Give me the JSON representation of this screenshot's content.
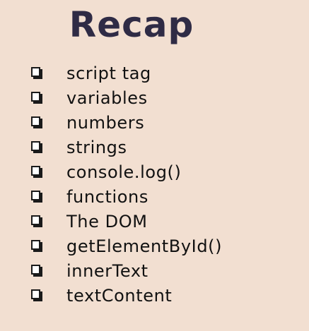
{
  "title": "Recap",
  "items": [
    {
      "label": "script tag"
    },
    {
      "label": "variables"
    },
    {
      "label": "numbers"
    },
    {
      "label": "strings"
    },
    {
      "label": "console.log()"
    },
    {
      "label": "functions"
    },
    {
      "label": "The DOM"
    },
    {
      "label": "getElementById()"
    },
    {
      "label": "innerText"
    },
    {
      "label": "textContent"
    }
  ]
}
